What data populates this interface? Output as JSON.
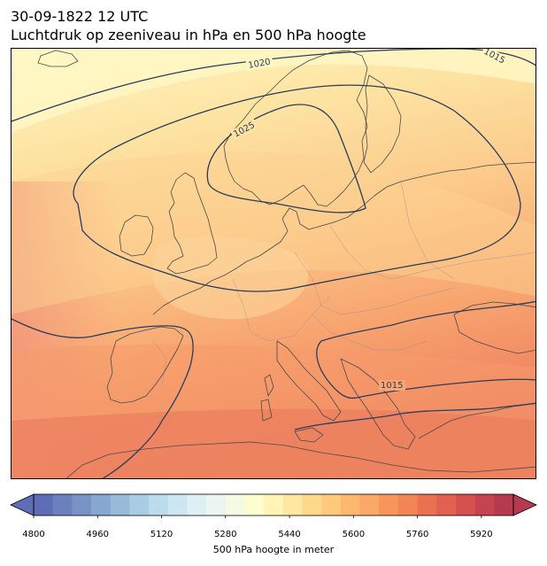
{
  "header": {
    "datetime": "30-09-1822 12 UTC",
    "subtitle": "Luchtdruk op zeeniveau in hPa en 500 hPa hoogte"
  },
  "map": {
    "region": "Europe",
    "field_colormap": "RdYlBu_r",
    "isobar_color": "#2b3d5c",
    "border_color": "#555555",
    "isobar_labels": [
      "1020",
      "1025",
      "1015",
      "1015"
    ]
  },
  "colorbar": {
    "label": "500 hPa hoogte in meter",
    "min": 4800,
    "max": 6000,
    "step": 40,
    "ticks": [
      "4800",
      "4960",
      "5120",
      "5280",
      "5440",
      "5600",
      "5760",
      "5920"
    ],
    "colors": [
      "#5e6db5",
      "#6b80bd",
      "#7893c5",
      "#86a7cf",
      "#98bbd9",
      "#a9cde2",
      "#bcdceb",
      "#cde7f0",
      "#ddf0f4",
      "#ebf6f2",
      "#f5fbe2",
      "#fdfed0",
      "#fff3b6",
      "#fee7a0",
      "#fdd98c",
      "#fdc97b",
      "#fcb86e",
      "#fba765",
      "#f8955c",
      "#f28455",
      "#ea7251",
      "#e0614f",
      "#d4514f",
      "#c6444f",
      "#b5394f"
    ]
  }
}
